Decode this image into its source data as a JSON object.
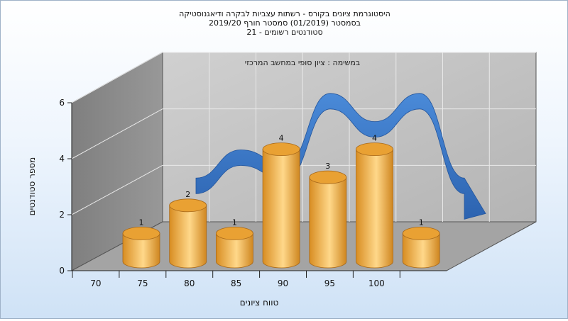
{
  "chart_data": {
    "type": "bar",
    "title_lines": [
      "היסטוגרמת ציונים בקורס - רשתות עצביות לבקרה ודיאגנוסטיקה",
      "בסמסטר  (01/2019)  סמסטר חורף 2019/20",
      "סטודנטים רשומים - 21"
    ],
    "subtitle": "במשימה : ציון סופי במחשב המרכזי",
    "xlabel": "טווח ציונים",
    "ylabel": "מספר סטודנטים",
    "ylim": [
      0,
      6
    ],
    "y_ticks": [
      0,
      2,
      4,
      6
    ],
    "x_tick_labels": [
      "70",
      "75",
      "80",
      "85",
      "90",
      "95",
      "100"
    ],
    "categories": [
      "70-75",
      "75-80",
      "80-85",
      "85-90",
      "90-95",
      "95-100",
      "100"
    ],
    "values": [
      1,
      2,
      1,
      4,
      3,
      4,
      1
    ],
    "series": [
      {
        "values": [
          1,
          2,
          1,
          4,
          3,
          4,
          1
        ],
        "color": "#e3a73f"
      },
      {
        "values": [
          2,
          3,
          2.5,
          5,
          4,
          5,
          2
        ],
        "color": "#3a78c9"
      }
    ],
    "grid": true
  }
}
